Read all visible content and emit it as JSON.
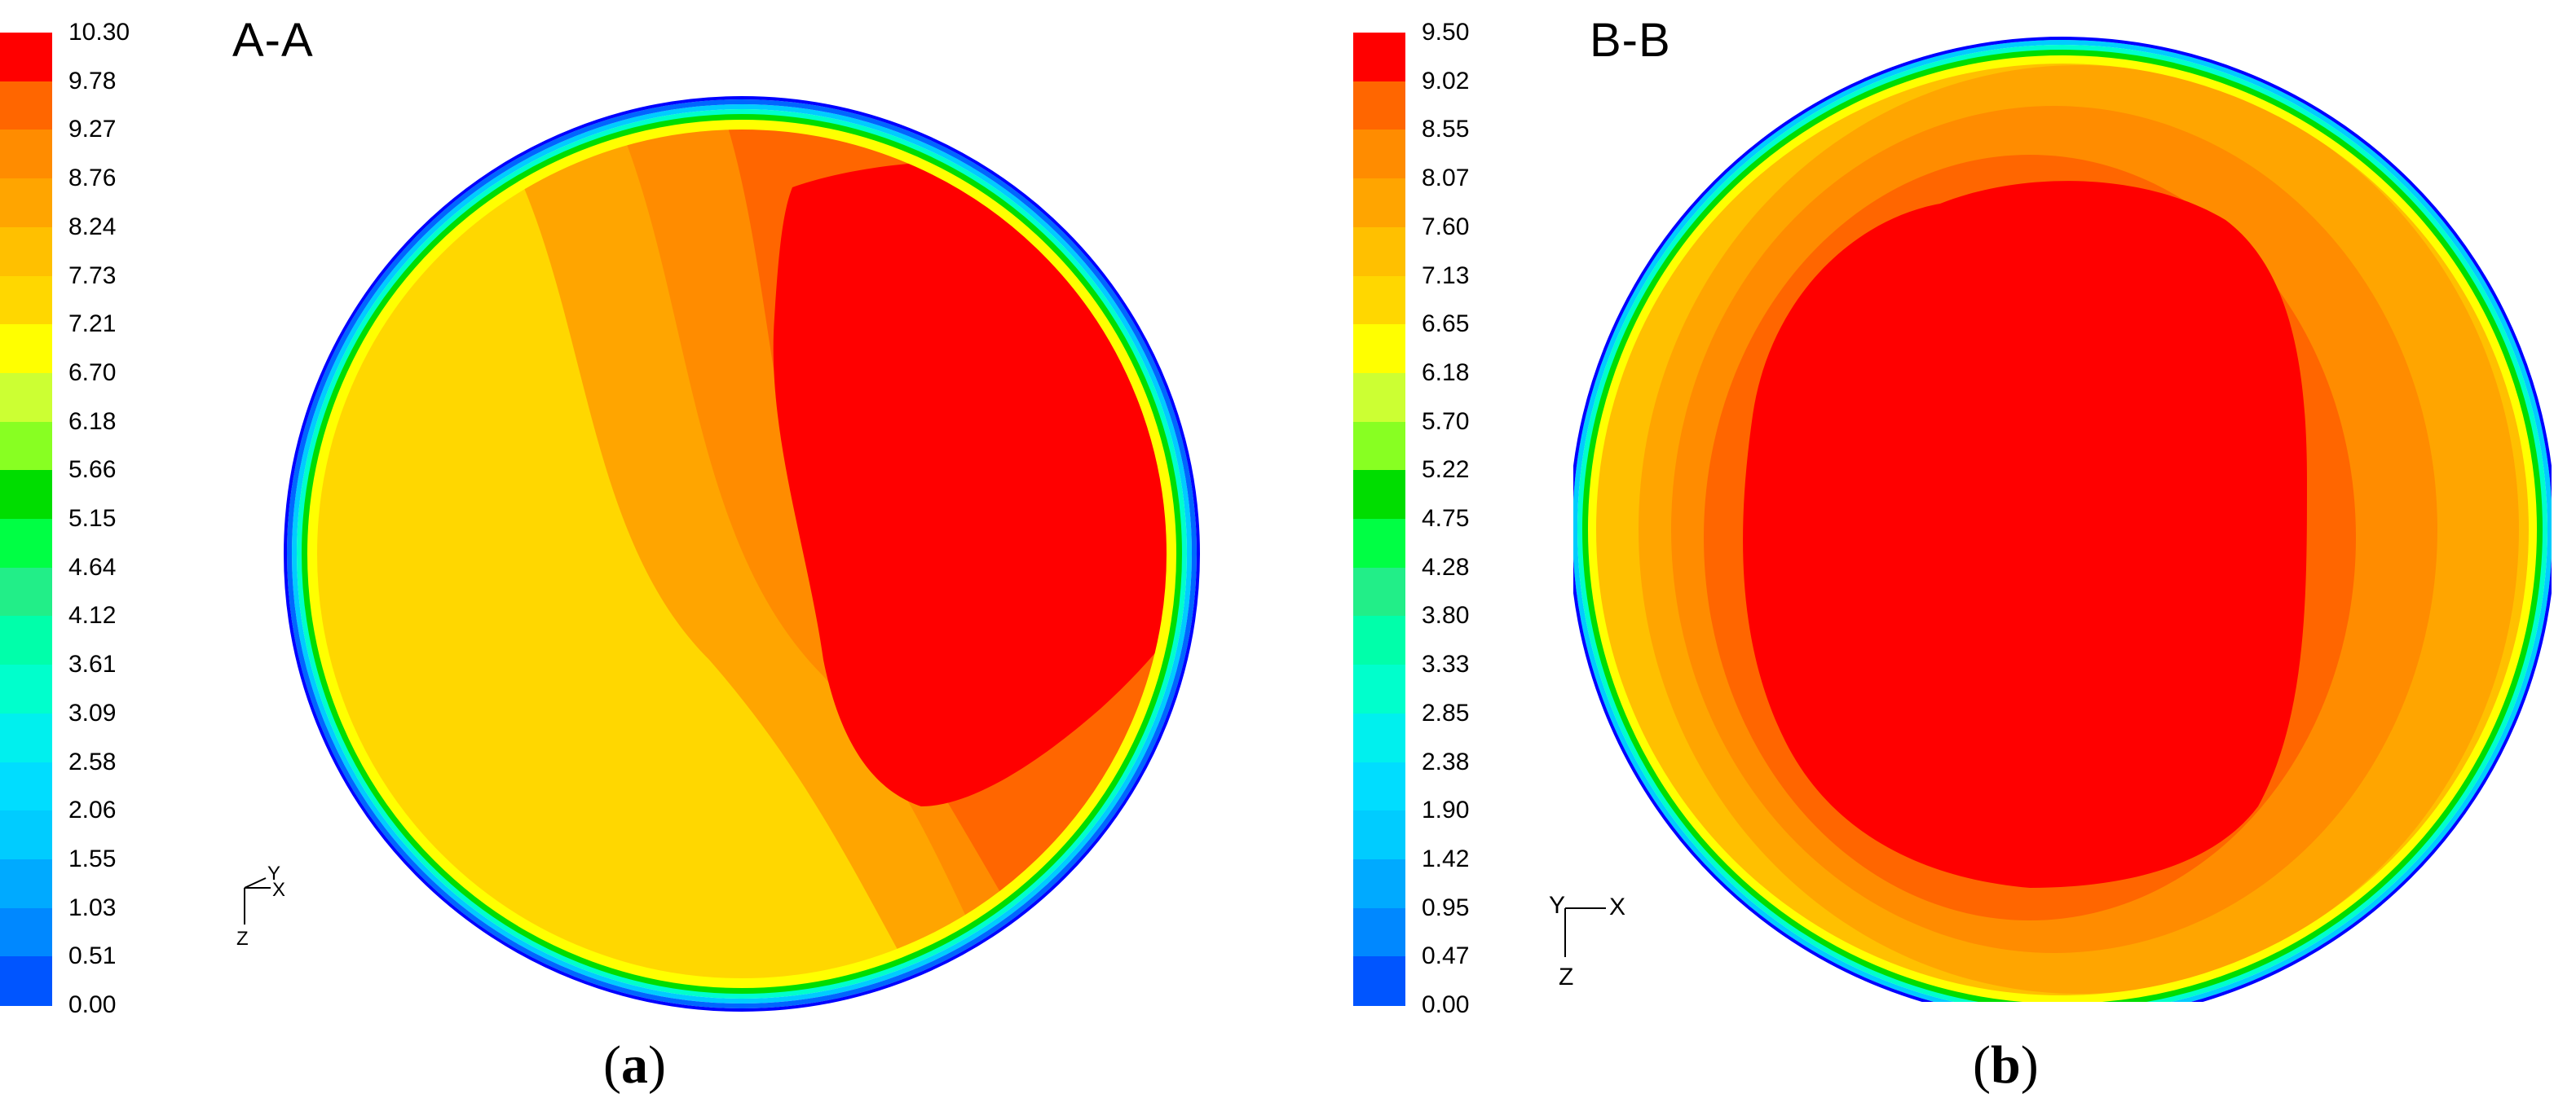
{
  "chart_data": [
    {
      "type": "heatmap",
      "plot": "contour",
      "title": "A-A",
      "caption_letter": "a",
      "colorbar_ticks": [
        "10.30",
        "9.78",
        "9.27",
        "8.76",
        "8.24",
        "7.73",
        "7.21",
        "6.70",
        "6.18",
        "5.66",
        "5.15",
        "4.64",
        "4.12",
        "3.61",
        "3.09",
        "2.58",
        "2.06",
        "1.55",
        "1.03",
        "0.51",
        "0.00"
      ],
      "value_range": [
        0.0,
        10.3
      ],
      "triad_labels": [
        "Y",
        "X",
        "Z"
      ],
      "peak_region": "right-of-center"
    },
    {
      "type": "heatmap",
      "plot": "contour",
      "title": "B-B",
      "caption_letter": "b",
      "colorbar_ticks": [
        "9.50",
        "9.02",
        "8.55",
        "8.07",
        "7.60",
        "7.13",
        "6.65",
        "6.18",
        "5.70",
        "5.22",
        "4.75",
        "4.28",
        "3.80",
        "3.33",
        "2.85",
        "2.38",
        "1.90",
        "1.42",
        "0.95",
        "0.47",
        "0.00"
      ],
      "value_range": [
        0.0,
        9.5
      ],
      "triad_labels": [
        "Y",
        "X",
        "Z"
      ],
      "peak_region": "center"
    }
  ],
  "palette": [
    "#ff0000",
    "#ff6600",
    "#ff8c00",
    "#ffa500",
    "#ffc000",
    "#ffd700",
    "#ffff00",
    "#ccff33",
    "#88ff22",
    "#00dd00",
    "#00ff44",
    "#22ee88",
    "#00ffaa",
    "#00ffcc",
    "#00f0ee",
    "#00ddff",
    "#00ccff",
    "#00aaff",
    "#0088ff",
    "#0055ff",
    "#0000ff"
  ]
}
